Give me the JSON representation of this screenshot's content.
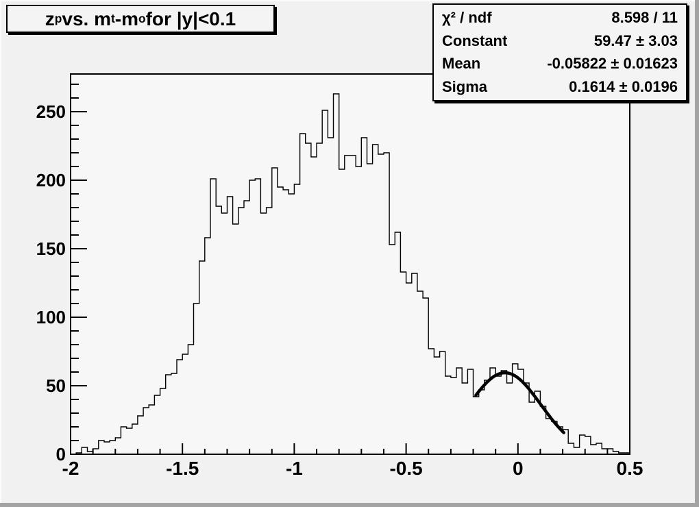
{
  "title": {
    "plain": "z_p vs. m_t-m_o for |y|<0.1",
    "parts": [
      {
        "t": "z"
      },
      {
        "s": "p"
      },
      {
        "t": " vs. m"
      },
      {
        "s": "t"
      },
      {
        "t": "-m"
      },
      {
        "s": "o"
      },
      {
        "t": " for |y|<0.1"
      }
    ]
  },
  "stats": {
    "rows": [
      {
        "label": "χ² / ndf",
        "value": "8.598 / 11"
      },
      {
        "label": "Constant",
        "value": "59.47 ± 3.03"
      },
      {
        "label": "Mean",
        "value": "-0.05822 ± 0.01623"
      },
      {
        "label": "Sigma",
        "value": "0.1614 ± 0.0196"
      }
    ]
  },
  "chart_data": {
    "type": "bar",
    "subtype": "step-histogram",
    "title": "z_p vs. m_t-m_o for |y|<0.1",
    "xlabel": "",
    "ylabel": "",
    "xlim": [
      -2.0,
      0.5
    ],
    "ylim": [
      0,
      277.5
    ],
    "x_ticks": [
      -2,
      -1.5,
      -1,
      -0.5,
      0,
      0.5
    ],
    "x_tick_labels": [
      "-2",
      "-1.5",
      "-1",
      "-0.5",
      "0",
      "0.5"
    ],
    "y_ticks": [
      0,
      50,
      100,
      150,
      200,
      250
    ],
    "y_tick_labels": [
      "0",
      "50",
      "100",
      "150",
      "200",
      "250"
    ],
    "x_minor_step": 0.1,
    "y_minor_step": 10,
    "grid": false,
    "legend": false,
    "bin_start": -2.0,
    "bin_width": 0.025,
    "values": [
      0,
      1,
      5,
      2,
      4,
      10,
      9,
      10,
      12,
      20,
      19,
      22,
      28,
      34,
      36,
      43,
      48,
      58,
      59,
      69,
      73,
      80,
      110,
      141,
      158,
      201,
      181,
      176,
      188,
      168,
      180,
      185,
      200,
      201,
      176,
      180,
      209,
      195,
      193,
      190,
      197,
      234,
      227,
      217,
      227,
      251,
      231,
      263,
      208,
      218,
      218,
      210,
      231,
      212,
      226,
      219,
      220,
      153,
      162,
      133,
      125,
      132,
      119,
      114,
      77,
      71,
      75,
      57,
      56,
      63,
      52,
      62,
      42,
      47,
      54,
      63,
      57,
      61,
      52,
      66,
      62,
      52,
      38,
      46,
      35,
      26,
      24,
      20,
      18,
      8,
      5,
      14,
      13,
      7,
      8,
      4,
      4,
      2,
      1,
      1
    ],
    "fit": {
      "type": "gaussian",
      "constant": 59.47,
      "mean": -0.05822,
      "sigma": 0.1614,
      "chi2": 8.598,
      "ndf": 11,
      "range": [
        -0.188,
        0.205
      ]
    },
    "line_color": "#000000",
    "fit_color": "#000000",
    "frame_fill": "#f7f7f7",
    "canvas_fill": "#f1f1f1"
  }
}
